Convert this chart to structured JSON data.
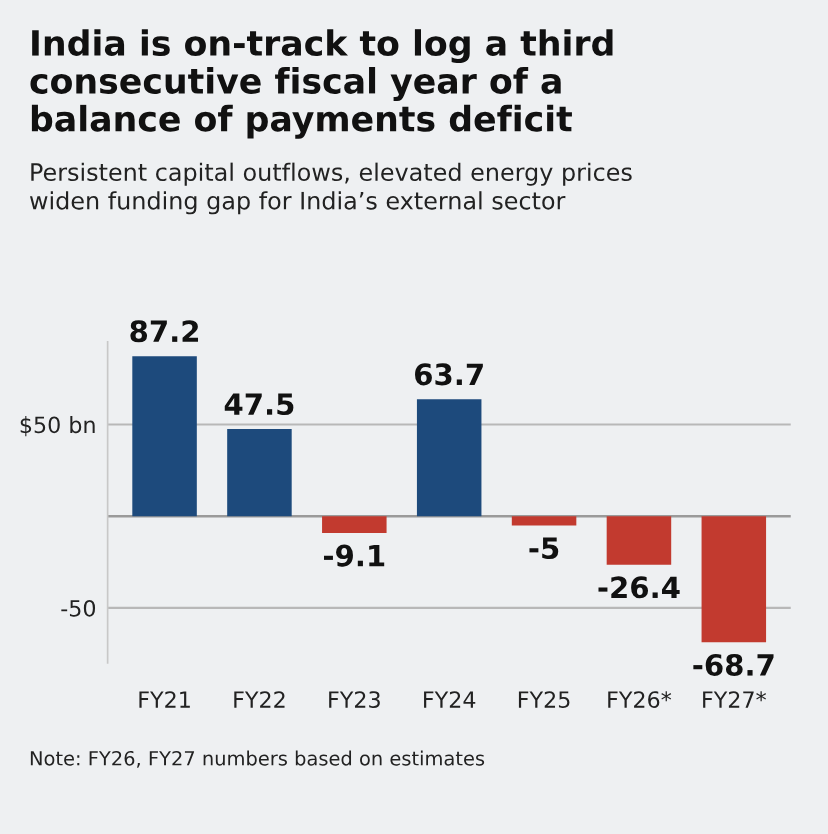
{
  "chart_data": {
    "type": "bar",
    "title": "India is on-track to log a third\nconsecutive fiscal year of a\nbalance of payments deficit",
    "subtitle": "Persistent capital outflows, elevated energy prices\nwiden funding gap for India’s external sector",
    "categories": [
      "FY21",
      "FY22",
      "FY23",
      "FY24",
      "FY25",
      "FY26*",
      "FY27*"
    ],
    "values": [
      87.2,
      47.5,
      -9.1,
      63.7,
      -5,
      -26.4,
      -68.7
    ],
    "colors": [
      "#1d4a7c",
      "#1d4a7c",
      "#c23a2f",
      "#1d4a7c",
      "#c23a2f",
      "#c23a2f",
      "#c23a2f"
    ],
    "yticks": [
      {
        "value": 50,
        "label": "$50 bn"
      },
      {
        "value": -50,
        "label": "-50"
      }
    ],
    "ylim": [
      -80,
      95
    ],
    "grid": "y",
    "ref_lines": [
      {
        "axis": "y",
        "value": 0,
        "color": "#9a9a9a"
      }
    ],
    "data_labels": true,
    "annotations": [
      "Note: FY26, FY27 numbers based on estimates"
    ]
  }
}
